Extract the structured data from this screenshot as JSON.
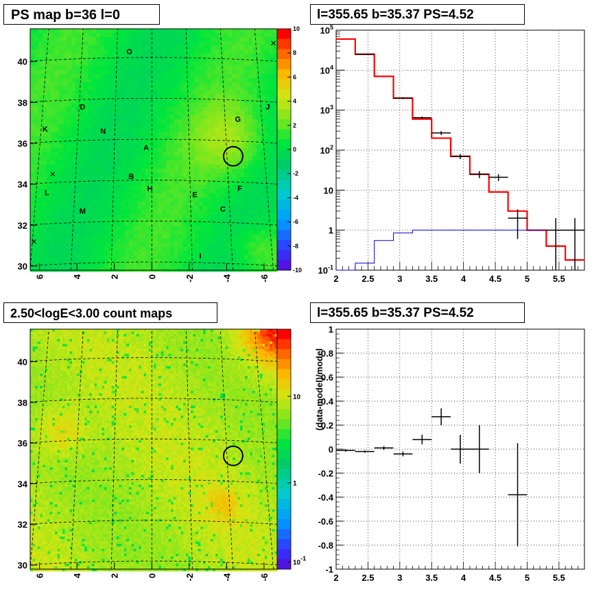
{
  "panels": {
    "ps_map": {
      "title": "PS map b=36 l=0"
    },
    "spectrum": {
      "title": "l=355.65 b=35.37 PS=4.52"
    },
    "count_map": {
      "title": "2.50<logE<3.00 count maps"
    },
    "residual": {
      "title": "l=355.65 b=35.37 PS=4.52"
    }
  },
  "chart_data": [
    {
      "name": "ps_map",
      "type": "heatmap",
      "title": "PS map b=36 l=0",
      "xlabel": "",
      "ylabel": "",
      "xlim": [
        6.5,
        -6.7
      ],
      "ylim": [
        29.8,
        41.6
      ],
      "x_ticks": [
        "6",
        "4",
        "2",
        "0",
        "-2",
        "-4",
        "-6"
      ],
      "y_ticks": [
        "30",
        "32",
        "34",
        "36",
        "38",
        "40"
      ],
      "colorbar": {
        "range": [
          -10,
          10
        ],
        "ticks": [
          "-10",
          "-8",
          "-6",
          "-4",
          "-2",
          "0",
          "2",
          "4",
          "6",
          "8",
          "10"
        ]
      },
      "regions": [
        {
          "label": "O",
          "lon": 1.2,
          "lat": 40.5
        },
        {
          "label": "D",
          "lon": 3.7,
          "lat": 37.8
        },
        {
          "label": "J",
          "lon": -6.2,
          "lat": 37.8
        },
        {
          "label": "G",
          "lon": -4.6,
          "lat": 37.2
        },
        {
          "label": "K",
          "lon": 5.7,
          "lat": 36.7
        },
        {
          "label": "N",
          "lon": 2.6,
          "lat": 36.6
        },
        {
          "label": "A",
          "lon": 0.3,
          "lat": 35.8
        },
        {
          "label": "B",
          "lon": 1.1,
          "lat": 34.4
        },
        {
          "label": "L",
          "lon": 5.6,
          "lat": 33.6
        },
        {
          "label": "H",
          "lon": 0.1,
          "lat": 33.8
        },
        {
          "label": "E",
          "lon": -2.3,
          "lat": 33.5
        },
        {
          "label": "F",
          "lon": -4.7,
          "lat": 33.8
        },
        {
          "label": "C",
          "lon": -3.8,
          "lat": 32.8
        },
        {
          "label": "M",
          "lon": 3.7,
          "lat": 32.7
        },
        {
          "label": "I",
          "lon": -2.6,
          "lat": 30.5
        }
      ],
      "source_circle": {
        "lon": -4.35,
        "lat": 35.37
      },
      "x_markers": [
        {
          "lon": 5.3,
          "lat": 34.5
        },
        {
          "lon": 6.3,
          "lat": 31.2
        },
        {
          "lon": -6.5,
          "lat": 40.9
        }
      ]
    },
    {
      "name": "spectrum",
      "type": "line",
      "title": "l=355.65 b=35.37 PS=4.52",
      "xlabel": "",
      "ylabel": "",
      "log_y": true,
      "xlim": [
        2,
        5.9
      ],
      "ylim": [
        0.1,
        100000
      ],
      "x_ticks": [
        "2",
        "2.5",
        "3",
        "3.5",
        "4",
        "4.5",
        "5",
        "5.5"
      ],
      "y_ticks": [
        "10^-1",
        "1",
        "10",
        "10^2",
        "10^3",
        "10^4",
        "10^5"
      ],
      "grid": true,
      "bin_edges": [
        2.0,
        2.3,
        2.6,
        2.9,
        3.2,
        3.5,
        3.8,
        4.1,
        4.4,
        4.7,
        5.0,
        5.3,
        5.6,
        5.9
      ],
      "series": [
        {
          "style": "red-step",
          "values": [
            60000,
            25000,
            7000,
            2000,
            600,
            200,
            70,
            25,
            9,
            3,
            1,
            0.4,
            0.18
          ]
        },
        {
          "style": "blue-step",
          "values": [
            0.1,
            0.15,
            0.55,
            0.85,
            1,
            1,
            1,
            1,
            1,
            1,
            1,
            1,
            1
          ]
        },
        {
          "style": "black-points",
          "points": [
            {
              "x": 2.45,
              "y": 25000,
              "xerr": 0.15,
              "ylo": 24500,
              "yhi": 25500
            },
            {
              "x": 3.05,
              "y": 2000,
              "xerr": 0.15,
              "ylo": 1900,
              "yhi": 2100
            },
            {
              "x": 3.35,
              "y": 650,
              "xerr": 0.15,
              "ylo": 610,
              "yhi": 690
            },
            {
              "x": 3.65,
              "y": 270,
              "xerr": 0.15,
              "ylo": 240,
              "yhi": 300
            },
            {
              "x": 3.95,
              "y": 70,
              "xerr": 0.15,
              "ylo": 60,
              "yhi": 80
            },
            {
              "x": 4.25,
              "y": 25,
              "xerr": 0.15,
              "ylo": 20,
              "yhi": 30
            },
            {
              "x": 4.55,
              "y": 21,
              "xerr": 0.15,
              "ylo": 17,
              "yhi": 25
            },
            {
              "x": 4.85,
              "y": 2,
              "xerr": 0.15,
              "ylo": 0.6,
              "yhi": 3.3
            },
            {
              "x": 5.45,
              "y": 1,
              "xerr": 0.15,
              "ylo": 0.1,
              "yhi": 2
            },
            {
              "x": 5.75,
              "y": 1,
              "xerr": 0.15,
              "ylo": 0.1,
              "yhi": 2
            }
          ]
        }
      ]
    },
    {
      "name": "count_map",
      "type": "heatmap",
      "title": "2.50<logE<3.00 count maps",
      "xlabel": "",
      "ylabel": "",
      "xlim": [
        6.5,
        -6.7
      ],
      "ylim": [
        29.8,
        41.6
      ],
      "x_ticks": [
        "6",
        "4",
        "2",
        "0",
        "-2",
        "-4",
        "-6"
      ],
      "y_ticks": [
        "30",
        "32",
        "34",
        "36",
        "38",
        "40"
      ],
      "colorbar": {
        "log": true,
        "ticks": [
          "10",
          "1",
          "10^-1"
        ]
      },
      "source_circle": {
        "lon": -4.35,
        "lat": 35.37
      }
    },
    {
      "name": "residual",
      "type": "scatter",
      "title": "l=355.65 b=35.37 PS=4.52",
      "xlabel": "",
      "ylabel": "(data-model)/model",
      "xlim": [
        2,
        5.9
      ],
      "ylim": [
        -1,
        1
      ],
      "x_ticks": [
        "2",
        "2.5",
        "3",
        "3.5",
        "4",
        "4.5",
        "5",
        "5.5"
      ],
      "y_ticks": [
        "-1",
        "-0.8",
        "-0.6",
        "-0.4",
        "-0.2",
        "0",
        "0.2",
        "0.4",
        "0.6",
        "0.8",
        "1"
      ],
      "grid": true,
      "points": [
        {
          "x": 2.15,
          "y": -0.01,
          "xerr": 0.15,
          "yerr": 0.01
        },
        {
          "x": 2.45,
          "y": -0.02,
          "xerr": 0.15,
          "yerr": 0.01
        },
        {
          "x": 2.75,
          "y": 0.01,
          "xerr": 0.15,
          "yerr": 0.015
        },
        {
          "x": 3.05,
          "y": -0.04,
          "xerr": 0.15,
          "yerr": 0.02
        },
        {
          "x": 3.35,
          "y": 0.08,
          "xerr": 0.15,
          "yerr": 0.04
        },
        {
          "x": 3.65,
          "y": 0.27,
          "xerr": 0.15,
          "yerr": 0.07
        },
        {
          "x": 3.95,
          "y": 0.0,
          "xerr": 0.15,
          "yerr": 0.12
        },
        {
          "x": 4.25,
          "y": 0.0,
          "xerr": 0.15,
          "yerr": 0.2
        },
        {
          "x": 4.85,
          "y": -0.38,
          "xerr": 0.15,
          "yerr": 0.43
        }
      ]
    }
  ]
}
